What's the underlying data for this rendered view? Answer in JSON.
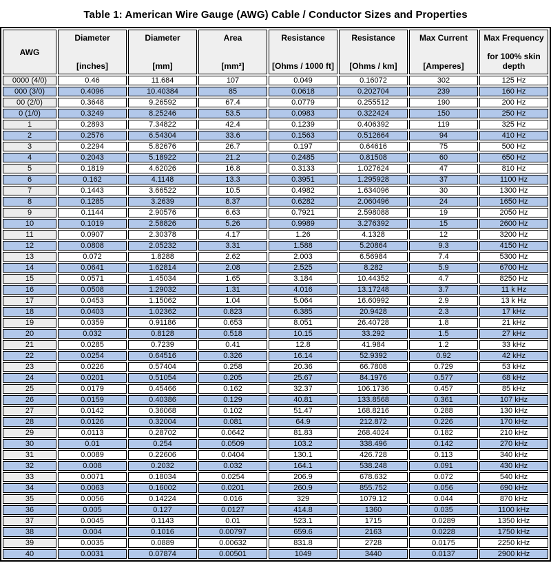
{
  "title": "Table 1: American Wire Gauge (AWG) Cable / Conductor Sizes and Properties",
  "colors": {
    "row_blue": "#b2c8ea",
    "row_white": "#ffffff",
    "awg_cell_gray": "#ececec",
    "header_bg": "#efefef",
    "border": "#000000"
  },
  "table": {
    "columns": [
      {
        "label": "AWG",
        "unit": ""
      },
      {
        "label": "Diameter",
        "unit": "[inches]"
      },
      {
        "label": "Diameter",
        "unit": "[mm]"
      },
      {
        "label": "Area",
        "unit": "[mm²]"
      },
      {
        "label": "Resistance",
        "unit": "[Ohms / 1000 ft]"
      },
      {
        "label": "Resistance",
        "unit": "[Ohms / km]"
      },
      {
        "label": "Max Current",
        "unit": "[Amperes]"
      },
      {
        "label": "Max Frequency",
        "unit": "for 100% skin depth"
      }
    ],
    "rows": [
      [
        "0000 (4/0)",
        "0.46",
        "11.684",
        "107",
        "0.049",
        "0.16072",
        "302",
        "125 Hz"
      ],
      [
        "000 (3/0)",
        "0.4096",
        "10.40384",
        "85",
        "0.0618",
        "0.202704",
        "239",
        "160 Hz"
      ],
      [
        "00 (2/0)",
        "0.3648",
        "9.26592",
        "67.4",
        "0.0779",
        "0.255512",
        "190",
        "200 Hz"
      ],
      [
        "0 (1/0)",
        "0.3249",
        "8.25246",
        "53.5",
        "0.0983",
        "0.322424",
        "150",
        "250 Hz"
      ],
      [
        "1",
        "0.2893",
        "7.34822",
        "42.4",
        "0.1239",
        "0.406392",
        "119",
        "325 Hz"
      ],
      [
        "2",
        "0.2576",
        "6.54304",
        "33.6",
        "0.1563",
        "0.512664",
        "94",
        "410 Hz"
      ],
      [
        "3",
        "0.2294",
        "5.82676",
        "26.7",
        "0.197",
        "0.64616",
        "75",
        "500 Hz"
      ],
      [
        "4",
        "0.2043",
        "5.18922",
        "21.2",
        "0.2485",
        "0.81508",
        "60",
        "650 Hz"
      ],
      [
        "5",
        "0.1819",
        "4.62026",
        "16.8",
        "0.3133",
        "1.027624",
        "47",
        "810 Hz"
      ],
      [
        "6",
        "0.162",
        "4.1148",
        "13.3",
        "0.3951",
        "1.295928",
        "37",
        "1100 Hz"
      ],
      [
        "7",
        "0.1443",
        "3.66522",
        "10.5",
        "0.4982",
        "1.634096",
        "30",
        "1300 Hz"
      ],
      [
        "8",
        "0.1285",
        "3.2639",
        "8.37",
        "0.6282",
        "2.060496",
        "24",
        "1650 Hz"
      ],
      [
        "9",
        "0.1144",
        "2.90576",
        "6.63",
        "0.7921",
        "2.598088",
        "19",
        "2050 Hz"
      ],
      [
        "10",
        "0.1019",
        "2.58826",
        "5.26",
        "0.9989",
        "3.276392",
        "15",
        "2600 Hz"
      ],
      [
        "11",
        "0.0907",
        "2.30378",
        "4.17",
        "1.26",
        "4.1328",
        "12",
        "3200 Hz"
      ],
      [
        "12",
        "0.0808",
        "2.05232",
        "3.31",
        "1.588",
        "5.20864",
        "9.3",
        "4150 Hz"
      ],
      [
        "13",
        "0.072",
        "1.8288",
        "2.62",
        "2.003",
        "6.56984",
        "7.4",
        "5300 Hz"
      ],
      [
        "14",
        "0.0641",
        "1.62814",
        "2.08",
        "2.525",
        "8.282",
        "5.9",
        "6700 Hz"
      ],
      [
        "15",
        "0.0571",
        "1.45034",
        "1.65",
        "3.184",
        "10.44352",
        "4.7",
        "8250 Hz"
      ],
      [
        "16",
        "0.0508",
        "1.29032",
        "1.31",
        "4.016",
        "13.17248",
        "3.7",
        "11 k Hz"
      ],
      [
        "17",
        "0.0453",
        "1.15062",
        "1.04",
        "5.064",
        "16.60992",
        "2.9",
        "13 k Hz"
      ],
      [
        "18",
        "0.0403",
        "1.02362",
        "0.823",
        "6.385",
        "20.9428",
        "2.3",
        "17 kHz"
      ],
      [
        "19",
        "0.0359",
        "0.91186",
        "0.653",
        "8.051",
        "26.40728",
        "1.8",
        "21 kHz"
      ],
      [
        "20",
        "0.032",
        "0.8128",
        "0.518",
        "10.15",
        "33.292",
        "1.5",
        "27 kHz"
      ],
      [
        "21",
        "0.0285",
        "0.7239",
        "0.41",
        "12.8",
        "41.984",
        "1.2",
        "33 kHz"
      ],
      [
        "22",
        "0.0254",
        "0.64516",
        "0.326",
        "16.14",
        "52.9392",
        "0.92",
        "42 kHz"
      ],
      [
        "23",
        "0.0226",
        "0.57404",
        "0.258",
        "20.36",
        "66.7808",
        "0.729",
        "53 kHz"
      ],
      [
        "24",
        "0.0201",
        "0.51054",
        "0.205",
        "25.67",
        "84.1976",
        "0.577",
        "68 kHz"
      ],
      [
        "25",
        "0.0179",
        "0.45466",
        "0.162",
        "32.37",
        "106.1736",
        "0.457",
        "85 kHz"
      ],
      [
        "26",
        "0.0159",
        "0.40386",
        "0.129",
        "40.81",
        "133.8568",
        "0.361",
        "107 kHz"
      ],
      [
        "27",
        "0.0142",
        "0.36068",
        "0.102",
        "51.47",
        "168.8216",
        "0.288",
        "130 kHz"
      ],
      [
        "28",
        "0.0126",
        "0.32004",
        "0.081",
        "64.9",
        "212.872",
        "0.226",
        "170 kHz"
      ],
      [
        "29",
        "0.0113",
        "0.28702",
        "0.0642",
        "81.83",
        "268.4024",
        "0.182",
        "210 kHz"
      ],
      [
        "30",
        "0.01",
        "0.254",
        "0.0509",
        "103.2",
        "338.496",
        "0.142",
        "270 kHz"
      ],
      [
        "31",
        "0.0089",
        "0.22606",
        "0.0404",
        "130.1",
        "426.728",
        "0.113",
        "340 kHz"
      ],
      [
        "32",
        "0.008",
        "0.2032",
        "0.032",
        "164.1",
        "538.248",
        "0.091",
        "430 kHz"
      ],
      [
        "33",
        "0.0071",
        "0.18034",
        "0.0254",
        "206.9",
        "678.632",
        "0.072",
        "540 kHz"
      ],
      [
        "34",
        "0.0063",
        "0.16002",
        "0.0201",
        "260.9",
        "855.752",
        "0.056",
        "690 kHz"
      ],
      [
        "35",
        "0.0056",
        "0.14224",
        "0.016",
        "329",
        "1079.12",
        "0.044",
        "870 kHz"
      ],
      [
        "36",
        "0.005",
        "0.127",
        "0.0127",
        "414.8",
        "1360",
        "0.035",
        "1100 kHz"
      ],
      [
        "37",
        "0.0045",
        "0.1143",
        "0.01",
        "523.1",
        "1715",
        "0.0289",
        "1350 kHz"
      ],
      [
        "38",
        "0.004",
        "0.1016",
        "0.00797",
        "659.6",
        "2163",
        "0.0228",
        "1750 kHz"
      ],
      [
        "39",
        "0.0035",
        "0.0889",
        "0.00632",
        "831.8",
        "2728",
        "0.0175",
        "2250 kHz"
      ],
      [
        "40",
        "0.0031",
        "0.07874",
        "0.00501",
        "1049",
        "3440",
        "0.0137",
        "2900 kHz"
      ]
    ]
  }
}
